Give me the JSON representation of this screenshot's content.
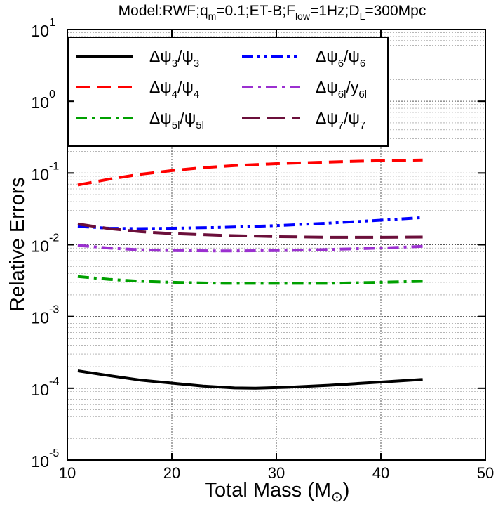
{
  "chart_data": {
    "type": "line",
    "title": "Model:RWF;q",
    "title_parts": [
      {
        "text": "Model:RWF;q",
        "sub": false
      },
      {
        "text": "m",
        "sub": true
      },
      {
        "text": "=0.1;ET-B;F",
        "sub": false
      },
      {
        "text": "low",
        "sub": true
      },
      {
        "text": "=1Hz;D",
        "sub": false
      },
      {
        "text": "L",
        "sub": true
      },
      {
        "text": "=300Mpc",
        "sub": false
      }
    ],
    "xlabel": "Total Mass (M",
    "xlabel_suffix": ")",
    "xlabel_symbol": "⊙",
    "ylabel": "Relative Errors",
    "xlim": [
      10,
      50
    ],
    "ylim_exp": [
      -5,
      1
    ],
    "yscale": "log",
    "xticks": [
      "10",
      "20",
      "30",
      "40",
      "50"
    ],
    "yticks": [
      {
        "base": "10",
        "exp": "-5"
      },
      {
        "base": "10",
        "exp": "-4"
      },
      {
        "base": "10",
        "exp": "-3"
      },
      {
        "base": "10",
        "exp": "-2"
      },
      {
        "base": "10",
        "exp": "-1"
      },
      {
        "base": "10",
        "exp": "0"
      },
      {
        "base": "10",
        "exp": "1"
      }
    ],
    "grid": true,
    "legend_position": "top",
    "series": [
      {
        "name": "Δψ3/ψ3",
        "label_parts": [
          {
            "t": "Δψ",
            "s": false
          },
          {
            "t": "3",
            "s": true
          },
          {
            "t": "/ψ",
            "s": false
          },
          {
            "t": "3",
            "s": true
          }
        ],
        "color": "#000000",
        "dash": "solid",
        "x": [
          11,
          14,
          17,
          20,
          23,
          26,
          28,
          31,
          35,
          40,
          44
        ],
        "y": [
          0.000175,
          0.00015,
          0.00013,
          0.000118,
          0.000107,
          0.000101,
          0.0001,
          0.000103,
          0.00011,
          0.000122,
          0.000133
        ]
      },
      {
        "name": "Δψ4/ψ4",
        "label_parts": [
          {
            "t": "Δψ",
            "s": false
          },
          {
            "t": "4",
            "s": true
          },
          {
            "t": "/ψ",
            "s": false
          },
          {
            "t": "4",
            "s": true
          }
        ],
        "color": "#ff0000",
        "dash": "dash",
        "x": [
          11,
          14,
          17,
          20,
          23,
          26,
          30,
          34,
          38,
          42,
          44
        ],
        "y": [
          0.068,
          0.082,
          0.096,
          0.108,
          0.119,
          0.127,
          0.135,
          0.141,
          0.146,
          0.15,
          0.152
        ]
      },
      {
        "name": "Δψ5l/ψ5l",
        "label_parts": [
          {
            "t": "Δψ",
            "s": false
          },
          {
            "t": "5l",
            "s": true
          },
          {
            "t": "/ψ",
            "s": false
          },
          {
            "t": "5l",
            "s": true
          }
        ],
        "color": "#00a000",
        "dash": "dashdot",
        "x": [
          11,
          14,
          17,
          20,
          25,
          30,
          35,
          40,
          44
        ],
        "y": [
          0.0036,
          0.0033,
          0.0031,
          0.003,
          0.0029,
          0.0029,
          0.0029,
          0.003,
          0.0031
        ]
      },
      {
        "name": "Δψ6/ψ6",
        "label_parts": [
          {
            "t": "Δψ",
            "s": false
          },
          {
            "t": "6",
            "s": true
          },
          {
            "t": "/ψ",
            "s": false
          },
          {
            "t": "6",
            "s": true
          }
        ],
        "color": "#0000ff",
        "dash": "dashdotdot",
        "x": [
          11,
          14,
          17,
          20,
          25,
          30,
          35,
          40,
          44
        ],
        "y": [
          0.018,
          0.017,
          0.0168,
          0.017,
          0.0175,
          0.0185,
          0.02,
          0.022,
          0.024
        ]
      },
      {
        "name": "Δψ6l/y6l",
        "label_parts": [
          {
            "t": "Δψ",
            "s": false
          },
          {
            "t": "6l",
            "s": true
          },
          {
            "t": "/y",
            "s": false
          },
          {
            "t": "6l",
            "s": true
          }
        ],
        "color": "#9b30d0",
        "dash": "dashdot",
        "x": [
          11,
          14,
          17,
          20,
          25,
          30,
          35,
          40,
          44
        ],
        "y": [
          0.0098,
          0.009,
          0.0085,
          0.0083,
          0.0082,
          0.0083,
          0.0086,
          0.009,
          0.0095
        ]
      },
      {
        "name": "Δψ7/ψ7",
        "label_parts": [
          {
            "t": "Δψ",
            "s": false
          },
          {
            "t": "7",
            "s": true
          },
          {
            "t": "/ψ",
            "s": false
          },
          {
            "t": "7",
            "s": true
          }
        ],
        "color": "#6b0f3a",
        "dash": "longdash",
        "x": [
          11,
          14,
          17,
          20,
          25,
          30,
          35,
          40,
          44
        ],
        "y": [
          0.0195,
          0.0168,
          0.0152,
          0.0143,
          0.0135,
          0.013,
          0.0127,
          0.0127,
          0.0128
        ]
      }
    ]
  }
}
